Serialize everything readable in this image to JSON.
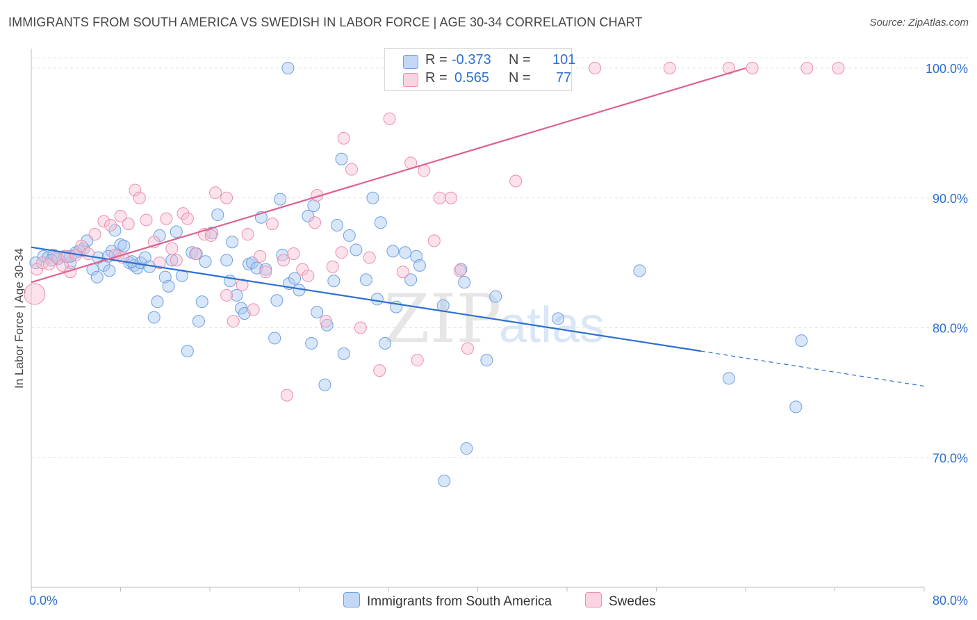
{
  "title": "IMMIGRANTS FROM SOUTH AMERICA VS SWEDISH IN LABOR FORCE | AGE 30-34 CORRELATION CHART",
  "source": "Source: ZipAtlas.com",
  "watermark": {
    "zip": "ZIP",
    "atlas": "atlas"
  },
  "legend": {
    "r_label": "R =",
    "n_label": "N =",
    "series": [
      {
        "name": "Immigrants from South America",
        "r": "-0.373",
        "n": "101",
        "color": "#a9c7f2",
        "stroke": "#6f9fe0"
      },
      {
        "name": "Swedes",
        "r": "0.565",
        "n": "77",
        "color": "#f7bfd2",
        "stroke": "#ea8fb0"
      }
    ]
  },
  "chart_data": {
    "type": "scatter",
    "title": "IMMIGRANTS FROM SOUTH AMERICA VS SWEDISH IN LABOR FORCE | AGE 30-34 CORRELATION CHART",
    "xlabel": "",
    "ylabel": "In Labor Force | Age 30-34",
    "xlim": [
      0,
      80
    ],
    "ylim": [
      60,
      101.5
    ],
    "x_tick_labels": [
      "0.0%",
      "80.0%"
    ],
    "y_ticks": [
      70,
      80,
      90,
      100
    ],
    "y_tick_labels": [
      "70.0%",
      "80.0%",
      "90.0%",
      "100.0%"
    ],
    "grid": true,
    "series": [
      {
        "name": "Immigrants from South America",
        "color": "#6f9fe0",
        "trend": {
          "x0": 0,
          "y0": 86.2,
          "x1": 60,
          "y1": 78.2,
          "dash_to": 80,
          "dash_y": 75.5,
          "color": "#2c6fd0"
        },
        "points": [
          [
            0.4,
            85
          ],
          [
            1.1,
            85.5
          ],
          [
            1.5,
            85.4
          ],
          [
            2,
            85.6
          ],
          [
            2.4,
            85.3
          ],
          [
            3,
            85.5
          ],
          [
            3.5,
            85
          ],
          [
            4,
            85.8
          ],
          [
            4.7,
            86.1
          ],
          [
            5,
            86.7
          ],
          [
            5.5,
            84.5
          ],
          [
            5.9,
            83.9
          ],
          [
            6,
            85.4
          ],
          [
            6.5,
            84.8
          ],
          [
            7,
            84.4
          ],
          [
            7.2,
            85.9
          ],
          [
            7.5,
            87.5
          ],
          [
            7.8,
            85.6
          ],
          [
            8,
            86.4
          ],
          [
            8.3,
            86.3
          ],
          [
            8.8,
            85
          ],
          [
            9.2,
            84.8
          ],
          [
            9.5,
            84.6
          ],
          [
            9.8,
            85
          ],
          [
            10.2,
            85.4
          ],
          [
            10.6,
            84.7
          ],
          [
            11,
            80.8
          ],
          [
            11.3,
            82
          ],
          [
            11.5,
            87.1
          ],
          [
            12,
            83.9
          ],
          [
            12.3,
            83.2
          ],
          [
            12.6,
            85.2
          ],
          [
            13,
            87.4
          ],
          [
            13.5,
            84
          ],
          [
            14,
            78.2
          ],
          [
            14.4,
            85.8
          ],
          [
            15,
            80.5
          ],
          [
            15.3,
            82
          ],
          [
            15.6,
            85.1
          ],
          [
            16.2,
            87.3
          ],
          [
            16.7,
            88.7
          ],
          [
            17.5,
            85.2
          ],
          [
            17.8,
            83.6
          ],
          [
            18,
            86.6
          ],
          [
            18.4,
            82.5
          ],
          [
            18.8,
            81.5
          ],
          [
            19.1,
            81.1
          ],
          [
            19.5,
            84.9
          ],
          [
            19.8,
            85
          ],
          [
            20.2,
            84.6
          ],
          [
            20.6,
            88.5
          ],
          [
            21,
            84.5
          ],
          [
            21.8,
            79.2
          ],
          [
            22,
            82.1
          ],
          [
            22.3,
            89.9
          ],
          [
            22.5,
            85.6
          ],
          [
            23.1,
            83.4
          ],
          [
            23.6,
            83.8
          ],
          [
            24,
            82.9
          ],
          [
            24.8,
            88.6
          ],
          [
            25.1,
            78.8
          ],
          [
            25.3,
            89.4
          ],
          [
            25.6,
            81.2
          ],
          [
            26.5,
            80.2
          ],
          [
            26.3,
            75.6
          ],
          [
            27.1,
            83.6
          ],
          [
            27.4,
            87.9
          ],
          [
            27.8,
            93
          ],
          [
            28,
            78
          ],
          [
            28.5,
            87.1
          ],
          [
            29.1,
            86
          ],
          [
            30,
            83.7
          ],
          [
            30.6,
            90
          ],
          [
            31,
            82.2
          ],
          [
            31.3,
            88.1
          ],
          [
            31.7,
            78.8
          ],
          [
            32.4,
            85.9
          ],
          [
            32.7,
            81.6
          ],
          [
            33.5,
            85.8
          ],
          [
            34,
            83.7
          ],
          [
            34.5,
            85.5
          ],
          [
            34.8,
            84.8
          ],
          [
            23,
            100
          ],
          [
            36.9,
            81.7
          ],
          [
            38.5,
            84.5
          ],
          [
            38.8,
            83.5
          ],
          [
            39,
            70.7
          ],
          [
            37,
            68.2
          ],
          [
            40.8,
            77.5
          ],
          [
            41.6,
            82.4
          ],
          [
            47.2,
            80.7
          ],
          [
            54.5,
            84.4
          ],
          [
            62.5,
            76.1
          ],
          [
            68.5,
            73.9
          ],
          [
            69,
            79
          ],
          [
            3.5,
            85.5
          ],
          [
            4.3,
            85.9
          ],
          [
            1.8,
            85.2
          ],
          [
            6.9,
            85.5
          ],
          [
            9,
            85.1
          ],
          [
            14.8,
            85.7
          ]
        ]
      },
      {
        "name": "Swedes",
        "color": "#ea8fb0",
        "trend": {
          "x0": 0,
          "y0": 83.5,
          "x1": 64,
          "y1": 100,
          "color": "#e06090"
        },
        "points": [
          [
            0.3,
            82.6
          ],
          [
            0.5,
            84.5
          ],
          [
            1,
            85
          ],
          [
            1.6,
            84.9
          ],
          [
            2.3,
            85.4
          ],
          [
            2.8,
            84.8
          ],
          [
            3.2,
            85.5
          ],
          [
            3.5,
            84.3
          ],
          [
            4,
            85.6
          ],
          [
            4.5,
            86.3
          ],
          [
            5.1,
            85.7
          ],
          [
            5.7,
            87.2
          ],
          [
            6.5,
            88.2
          ],
          [
            7.1,
            87.9
          ],
          [
            7.5,
            85.6
          ],
          [
            8,
            88.6
          ],
          [
            8.2,
            85.4
          ],
          [
            8.7,
            88
          ],
          [
            9.3,
            90.6
          ],
          [
            9.7,
            90
          ],
          [
            10.3,
            88.3
          ],
          [
            11,
            86.6
          ],
          [
            11.5,
            85
          ],
          [
            12.1,
            88.4
          ],
          [
            12.6,
            86.1
          ],
          [
            13,
            85.2
          ],
          [
            13.6,
            88.8
          ],
          [
            14,
            88.4
          ],
          [
            14.7,
            85.7
          ],
          [
            15.5,
            87.2
          ],
          [
            16.1,
            87.1
          ],
          [
            16.5,
            90.4
          ],
          [
            17.5,
            90
          ],
          [
            17.5,
            82.5
          ],
          [
            18.1,
            80.5
          ],
          [
            18.9,
            83.3
          ],
          [
            19.4,
            87.2
          ],
          [
            19.9,
            81.4
          ],
          [
            20.5,
            85.5
          ],
          [
            21,
            84.3
          ],
          [
            21.6,
            88
          ],
          [
            22.6,
            85.2
          ],
          [
            22.9,
            74.8
          ],
          [
            23.5,
            85.7
          ],
          [
            24.3,
            84.5
          ],
          [
            24.8,
            84
          ],
          [
            25.4,
            88.1
          ],
          [
            25.6,
            90.2
          ],
          [
            26.4,
            80.5
          ],
          [
            27,
            84.7
          ],
          [
            27.8,
            85.8
          ],
          [
            28,
            94.6
          ],
          [
            28.7,
            92.2
          ],
          [
            29.5,
            80
          ],
          [
            30.3,
            85.4
          ],
          [
            31.2,
            76.7
          ],
          [
            32.1,
            96.1
          ],
          [
            33.3,
            84.3
          ],
          [
            34,
            92.7
          ],
          [
            34.6,
            77.5
          ],
          [
            35.2,
            92.1
          ],
          [
            36.1,
            86.7
          ],
          [
            36.6,
            90
          ],
          [
            37.6,
            90
          ],
          [
            38.4,
            84.4
          ],
          [
            39.1,
            78.4
          ],
          [
            39.6,
            100
          ],
          [
            37,
            100
          ],
          [
            39.5,
            100
          ],
          [
            43.4,
            91.3
          ],
          [
            47.6,
            100
          ],
          [
            50.5,
            100
          ],
          [
            57.2,
            100
          ],
          [
            62.5,
            100
          ],
          [
            69.5,
            100
          ],
          [
            72.3,
            100
          ],
          [
            64.6,
            100
          ]
        ]
      }
    ]
  }
}
